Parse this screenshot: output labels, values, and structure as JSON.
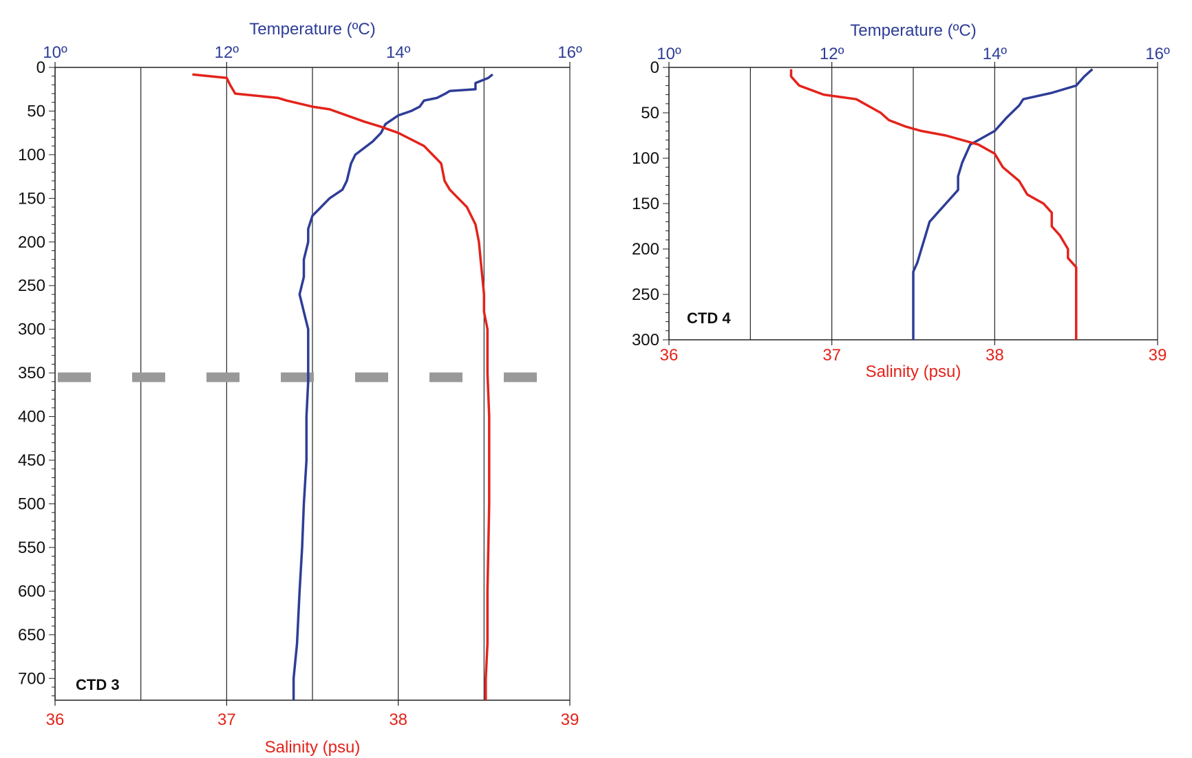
{
  "chart_data": [
    {
      "type": "line",
      "panel_label": "CTD 3",
      "title": "Temperature (ºC)",
      "xlabel": "Salinity (psu)",
      "ylabel": "",
      "temp_ticks": [
        "10º",
        "12º",
        "14º",
        "16º"
      ],
      "temp_range": [
        10,
        16
      ],
      "sal_ticks": [
        "36",
        "37",
        "38",
        "39"
      ],
      "sal_range": [
        36,
        39
      ],
      "depth_ticks": [
        "0",
        "50",
        "100",
        "150",
        "200",
        "250",
        "300",
        "350",
        "400",
        "450",
        "500",
        "550",
        "600",
        "650",
        "700"
      ],
      "depth_range": [
        0,
        725
      ],
      "y_inverted": true,
      "grid": "vertical",
      "marker_depth": 355,
      "series": [
        {
          "color": "#2e3d97",
          "axis": "temperature",
          "points": [
            [
              15.1,
              8
            ],
            [
              15.05,
              12
            ],
            [
              14.9,
              18
            ],
            [
              14.9,
              25
            ],
            [
              14.6,
              27
            ],
            [
              14.55,
              30
            ],
            [
              14.45,
              35
            ],
            [
              14.3,
              38
            ],
            [
              14.25,
              45
            ],
            [
              14.15,
              50
            ],
            [
              14.0,
              55
            ],
            [
              13.85,
              65
            ],
            [
              13.8,
              75
            ],
            [
              13.7,
              85
            ],
            [
              13.5,
              100
            ],
            [
              13.45,
              110
            ],
            [
              13.4,
              130
            ],
            [
              13.35,
              140
            ],
            [
              13.2,
              150
            ],
            [
              13.1,
              160
            ],
            [
              13.0,
              170
            ],
            [
              12.95,
              185
            ],
            [
              12.95,
              200
            ],
            [
              12.9,
              220
            ],
            [
              12.9,
              240
            ],
            [
              12.85,
              260
            ],
            [
              12.9,
              280
            ],
            [
              12.95,
              300
            ],
            [
              12.95,
              330
            ],
            [
              12.95,
              360
            ],
            [
              12.93,
              400
            ],
            [
              12.93,
              450
            ],
            [
              12.9,
              500
            ],
            [
              12.88,
              550
            ],
            [
              12.85,
              600
            ],
            [
              12.82,
              660
            ],
            [
              12.78,
              700
            ],
            [
              12.78,
              725
            ]
          ]
        },
        {
          "color": "#e3231b",
          "axis": "salinity",
          "points": [
            [
              36.8,
              8
            ],
            [
              37.0,
              12
            ],
            [
              37.02,
              20
            ],
            [
              37.05,
              30
            ],
            [
              37.3,
              35
            ],
            [
              37.35,
              38
            ],
            [
              37.5,
              45
            ],
            [
              37.6,
              48
            ],
            [
              37.7,
              55
            ],
            [
              37.8,
              62
            ],
            [
              37.9,
              68
            ],
            [
              38.0,
              75
            ],
            [
              38.05,
              80
            ],
            [
              38.15,
              90
            ],
            [
              38.2,
              100
            ],
            [
              38.25,
              110
            ],
            [
              38.27,
              130
            ],
            [
              38.3,
              140
            ],
            [
              38.35,
              150
            ],
            [
              38.4,
              160
            ],
            [
              38.45,
              180
            ],
            [
              38.47,
              200
            ],
            [
              38.48,
              220
            ],
            [
              38.5,
              260
            ],
            [
              38.5,
              280
            ],
            [
              38.52,
              300
            ],
            [
              38.52,
              350
            ],
            [
              38.53,
              400
            ],
            [
              38.53,
              500
            ],
            [
              38.52,
              600
            ],
            [
              38.52,
              660
            ],
            [
              38.51,
              700
            ],
            [
              38.51,
              725
            ]
          ]
        }
      ]
    },
    {
      "type": "line",
      "panel_label": "CTD 4",
      "title": "Temperature (ºC)",
      "xlabel": "Salinity (psu)",
      "ylabel": "",
      "temp_ticks": [
        "10º",
        "12º",
        "14º",
        "16º"
      ],
      "temp_range": [
        10,
        16
      ],
      "sal_ticks": [
        "36",
        "37",
        "38",
        "39"
      ],
      "sal_range": [
        36,
        39
      ],
      "depth_ticks": [
        "0",
        "50",
        "100",
        "150",
        "200",
        "250",
        "300"
      ],
      "depth_range": [
        0,
        300
      ],
      "y_inverted": true,
      "grid": "vertical",
      "series": [
        {
          "color": "#2e3d97",
          "axis": "temperature",
          "points": [
            [
              15.2,
              2
            ],
            [
              15.1,
              10
            ],
            [
              15.0,
              20
            ],
            [
              14.7,
              28
            ],
            [
              14.35,
              35
            ],
            [
              14.3,
              42
            ],
            [
              14.15,
              55
            ],
            [
              14.0,
              70
            ],
            [
              13.8,
              80
            ],
            [
              13.7,
              85
            ],
            [
              13.65,
              95
            ],
            [
              13.6,
              105
            ],
            [
              13.55,
              120
            ],
            [
              13.55,
              135
            ],
            [
              13.4,
              150
            ],
            [
              13.3,
              160
            ],
            [
              13.2,
              170
            ],
            [
              13.15,
              185
            ],
            [
              13.1,
              200
            ],
            [
              13.05,
              215
            ],
            [
              13.0,
              225
            ],
            [
              13.0,
              240
            ],
            [
              13.0,
              260
            ],
            [
              13.0,
              280
            ],
            [
              13.0,
              300
            ]
          ]
        },
        {
          "color": "#e3231b",
          "axis": "salinity",
          "points": [
            [
              36.75,
              2
            ],
            [
              36.75,
              10
            ],
            [
              36.8,
              20
            ],
            [
              36.95,
              30
            ],
            [
              37.15,
              35
            ],
            [
              37.2,
              40
            ],
            [
              37.3,
              50
            ],
            [
              37.35,
              58
            ],
            [
              37.45,
              65
            ],
            [
              37.55,
              70
            ],
            [
              37.7,
              75
            ],
            [
              37.8,
              80
            ],
            [
              37.9,
              85
            ],
            [
              38.0,
              95
            ],
            [
              38.05,
              110
            ],
            [
              38.15,
              125
            ],
            [
              38.2,
              140
            ],
            [
              38.3,
              150
            ],
            [
              38.35,
              160
            ],
            [
              38.35,
              175
            ],
            [
              38.4,
              185
            ],
            [
              38.45,
              200
            ],
            [
              38.45,
              210
            ],
            [
              38.5,
              220
            ],
            [
              38.5,
              240
            ],
            [
              38.5,
              260
            ],
            [
              38.5,
              280
            ],
            [
              38.5,
              300
            ]
          ]
        }
      ]
    }
  ]
}
